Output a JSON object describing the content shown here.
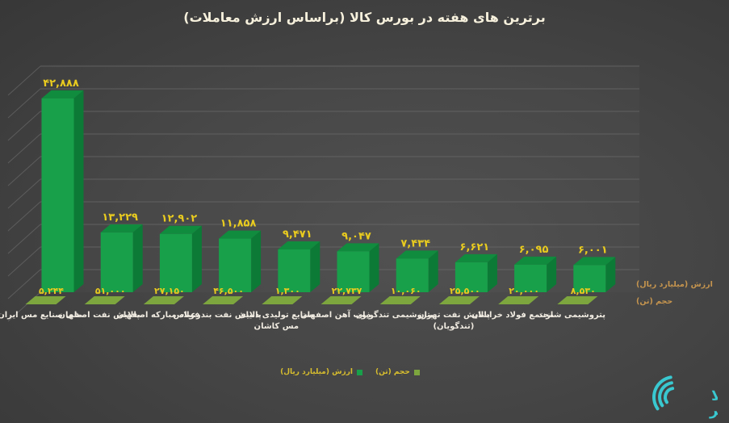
{
  "title": "برترین های هفته در بورس کالا (براساس ارزش معاملات)",
  "colors": {
    "background_dark": "#262626",
    "background_light": "#4e4e4e",
    "bar_front": "#18a04a",
    "bar_top": "#108c3e",
    "bar_side": "#0c7a36",
    "volume_tile": "#7da63e",
    "value_label": "#e9cb1f",
    "category_label": "#efeae0",
    "axis_label": "#c6954e",
    "gridline": "#6a6a6a",
    "title_color": "#f6f0dc",
    "logo_teal": "#39c8d0"
  },
  "chart_data": {
    "type": "bar",
    "title": "برترین های هفته در بورس کالا (براساس ارزش معاملات)",
    "categories": [
      "ملی صنایع مس ایران",
      "پالایش نفت اصفهان",
      "فولاد مبارکه اصفهان",
      "پالایش نفت بندرعباس",
      "صنایع تولیدی دنیای مس کاشان",
      "ذوب آهن اصفهان",
      "پتروشیمی تندگویان",
      "پالایش نفت تهران (تندگویان)",
      "مجتمع فولاد خراسان",
      "پتروشیمی شازند"
    ],
    "category_lines": [
      [
        "ملی صنایع مس ایران"
      ],
      [
        "پالایش نفت اصفهان"
      ],
      [
        "فولاد مبارکه اصفهان"
      ],
      [
        "پالایش نفت بندرعباس"
      ],
      [
        "صنایع تولیدی دنیای",
        "مس کاشان"
      ],
      [
        "ذوب آهن اصفهان"
      ],
      [
        "پتروشیمی تندگویان"
      ],
      [
        "پالایش نفت تهران",
        "(تندگویان)"
      ],
      [
        "مجتمع فولاد خراسان"
      ],
      [
        "پتروشیمی شازند"
      ]
    ],
    "series": [
      {
        "name": "ارزش (میلیارد ریال)",
        "values": [
          42888,
          13229,
          12902,
          11858,
          9471,
          9047,
          7434,
          6621,
          6095,
          6001
        ],
        "display": [
          "۴۲,۸۸۸",
          "۱۳,۲۲۹",
          "۱۲,۹۰۲",
          "۱۱,۸۵۸",
          "۹,۴۷۱",
          "۹,۰۴۷",
          "۷,۴۳۴",
          "۶,۶۲۱",
          "۶,۰۹۵",
          "۶,۰۰۱"
        ]
      },
      {
        "name": "حجم (تن)",
        "values": [
          5244,
          51000,
          27150,
          46500,
          1300,
          22737,
          10060,
          25500,
          20000,
          8530
        ],
        "display": [
          "۵,۲۴۴",
          "۵۱,۰۰۰",
          "۲۷,۱۵۰",
          "۴۶,۵۰۰",
          "۱,۳۰۰",
          "۲۲,۷۳۷",
          "۱۰,۰۶۰",
          "۲۵,۵۰۰",
          "۲۰,۰۰۰",
          "۸,۵۳۰"
        ]
      }
    ],
    "ylim": [
      0,
      50000
    ],
    "gridline_step": 5000,
    "grid": true,
    "legend_position": "bottom",
    "series_axis_labels": [
      "ارزش (میلیارد ریال)",
      "حجم (تن)"
    ]
  },
  "legend": {
    "items": [
      {
        "label": "ارزش (میلیارد ریال)",
        "color": "#18a04a"
      },
      {
        "label": "حجم (تن)",
        "color": "#7da63e"
      }
    ]
  },
  "logo": {
    "line1": "کالا",
    "line2": "خبر"
  }
}
